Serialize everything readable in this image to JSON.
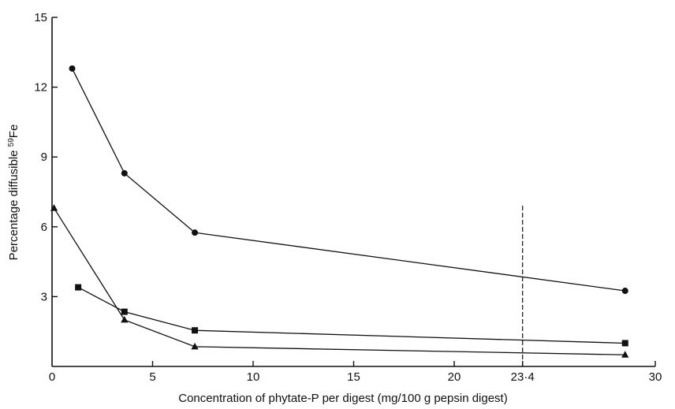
{
  "chart_data": {
    "type": "line",
    "xlabel": "Concentration of phytate-P per digest (mg/100 g pepsin digest)",
    "ylabel_main": "Percentage diffusible ",
    "ylabel_sup": "59",
    "ylabel_tail": "Fe",
    "xlim": [
      0,
      30
    ],
    "ylim": [
      0,
      15
    ],
    "x_ticks": [
      {
        "value": 0,
        "label": "0"
      },
      {
        "value": 5,
        "label": "5"
      },
      {
        "value": 10,
        "label": "10"
      },
      {
        "value": 15,
        "label": "15"
      },
      {
        "value": 20,
        "label": "20"
      },
      {
        "value": 23.4,
        "label": "23·4"
      },
      {
        "value": 30,
        "label": "30"
      }
    ],
    "y_ticks": [
      {
        "value": 3,
        "label": "3"
      },
      {
        "value": 6,
        "label": "6"
      },
      {
        "value": 9,
        "label": "9"
      },
      {
        "value": 12,
        "label": "12"
      },
      {
        "value": 15,
        "label": "15"
      }
    ],
    "reference_line": {
      "x": 23.4,
      "y_top": 7.0
    },
    "series": [
      {
        "marker": "circle",
        "x": [
          1.0,
          3.6,
          7.1,
          28.5
        ],
        "y": [
          12.8,
          8.3,
          5.75,
          3.25
        ]
      },
      {
        "marker": "square",
        "x": [
          1.3,
          3.6,
          7.1,
          28.5
        ],
        "y": [
          3.4,
          2.35,
          1.55,
          1.0
        ]
      },
      {
        "marker": "triangle",
        "x": [
          0.1,
          3.6,
          7.1,
          28.5
        ],
        "y": [
          6.8,
          2.0,
          0.85,
          0.5
        ]
      }
    ],
    "grid": false,
    "legend": "none"
  }
}
